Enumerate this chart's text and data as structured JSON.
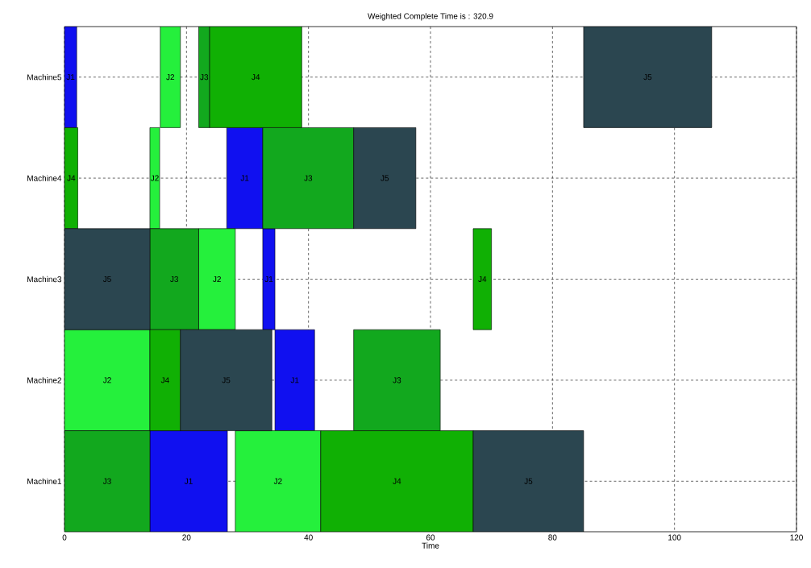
{
  "chart_data": {
    "type": "bar",
    "orientation": "horizontal",
    "title": "Weighted Complete Time is : 320.9",
    "xlabel": "Time",
    "categories": [
      "Machine5",
      "Machine4",
      "Machine3",
      "Machine2",
      "Machine1"
    ],
    "series": [
      {
        "name": "J1",
        "color": "#1010f0",
        "base": [
          0,
          26.6,
          32.5,
          34.5,
          14
        ],
        "values": [
          2,
          5.9,
          2,
          6.5,
          12.7
        ]
      },
      {
        "name": "J2",
        "color": "#25f03c",
        "base": [
          15.7,
          14,
          22,
          0,
          28
        ],
        "values": [
          3.3,
          1.6,
          6,
          14,
          14
        ]
      },
      {
        "name": "J3",
        "color": "#12a81e",
        "base": [
          22,
          32.5,
          14,
          47.4,
          0
        ],
        "values": [
          1.8,
          14.9,
          8,
          14.2,
          14
        ]
      },
      {
        "name": "J4",
        "color": "#10b004",
        "base": [
          23.8,
          0,
          67,
          14,
          42
        ],
        "values": [
          15.1,
          2.2,
          3,
          5,
          25
        ]
      },
      {
        "name": "J5",
        "color": "#2b4650",
        "base": [
          85.1,
          47.4,
          0,
          19,
          67
        ],
        "values": [
          21,
          10.2,
          14,
          15,
          18.1
        ]
      }
    ],
    "xlim": [
      0,
      120
    ],
    "xticks": [
      0,
      20,
      40,
      60,
      80,
      100,
      120
    ],
    "grid": true
  }
}
